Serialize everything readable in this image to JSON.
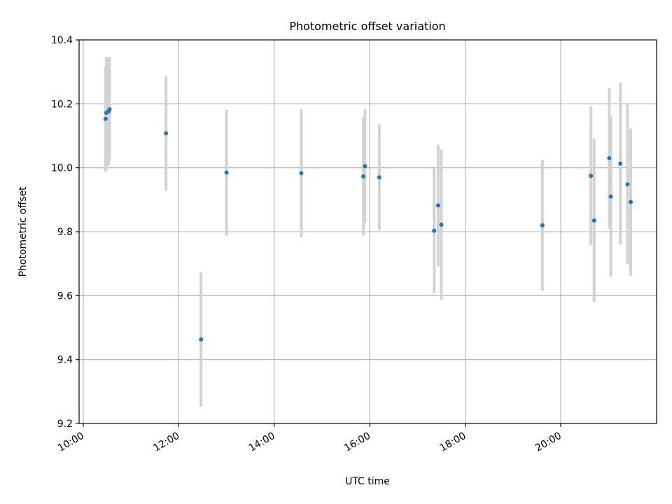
{
  "chart_data": {
    "type": "scatter",
    "title": "Photometric offset variation",
    "xlabel": "UTC time",
    "ylabel": "Photometric offset",
    "xlim": [
      "10:00",
      "22:00"
    ],
    "ylim": [
      9.2,
      10.4
    ],
    "grid": true,
    "x_ticks": [
      "10:00",
      "12:00",
      "14:00",
      "16:00",
      "18:00",
      "20:00"
    ],
    "y_ticks": [
      "9.2",
      "9.4",
      "9.6",
      "9.8",
      "10.0",
      "10.2",
      "10.4"
    ],
    "series": [
      {
        "points": [
          {
            "x": "10:28",
            "y": 10.153,
            "err": 0.165
          },
          {
            "x": "10:29",
            "y": 10.172,
            "err": 0.175
          },
          {
            "x": "10:32",
            "y": 10.177,
            "err": 0.17
          },
          {
            "x": "10:33",
            "y": 10.183,
            "err": 0.16
          },
          {
            "x": "11:44",
            "y": 10.108,
            "err": 0.18
          },
          {
            "x": "12:28",
            "y": 9.463,
            "err": 0.21
          },
          {
            "x": "13:00",
            "y": 9.985,
            "err": 0.197
          },
          {
            "x": "14:34",
            "y": 9.983,
            "err": 0.2
          },
          {
            "x": "15:52",
            "y": 9.973,
            "err": 0.185
          },
          {
            "x": "15:54",
            "y": 10.005,
            "err": 0.178
          },
          {
            "x": "16:12",
            "y": 9.97,
            "err": 0.165
          },
          {
            "x": "17:21",
            "y": 9.803,
            "err": 0.195
          },
          {
            "x": "17:26",
            "y": 9.882,
            "err": 0.19
          },
          {
            "x": "17:30",
            "y": 9.822,
            "err": 0.235
          },
          {
            "x": "19:37",
            "y": 9.82,
            "err": 0.205
          },
          {
            "x": "20:38",
            "y": 9.975,
            "err": 0.217
          },
          {
            "x": "20:42",
            "y": 9.835,
            "err": 0.255
          },
          {
            "x": "21:01",
            "y": 10.03,
            "err": 0.22
          },
          {
            "x": "21:03",
            "y": 9.91,
            "err": 0.25
          },
          {
            "x": "21:15",
            "y": 10.013,
            "err": 0.253
          },
          {
            "x": "21:24",
            "y": 9.948,
            "err": 0.25
          },
          {
            "x": "21:28",
            "y": 9.893,
            "err": 0.23
          }
        ],
        "marker_color": "#1f77b4",
        "errorbar_color": "#d3d3d3"
      }
    ]
  }
}
